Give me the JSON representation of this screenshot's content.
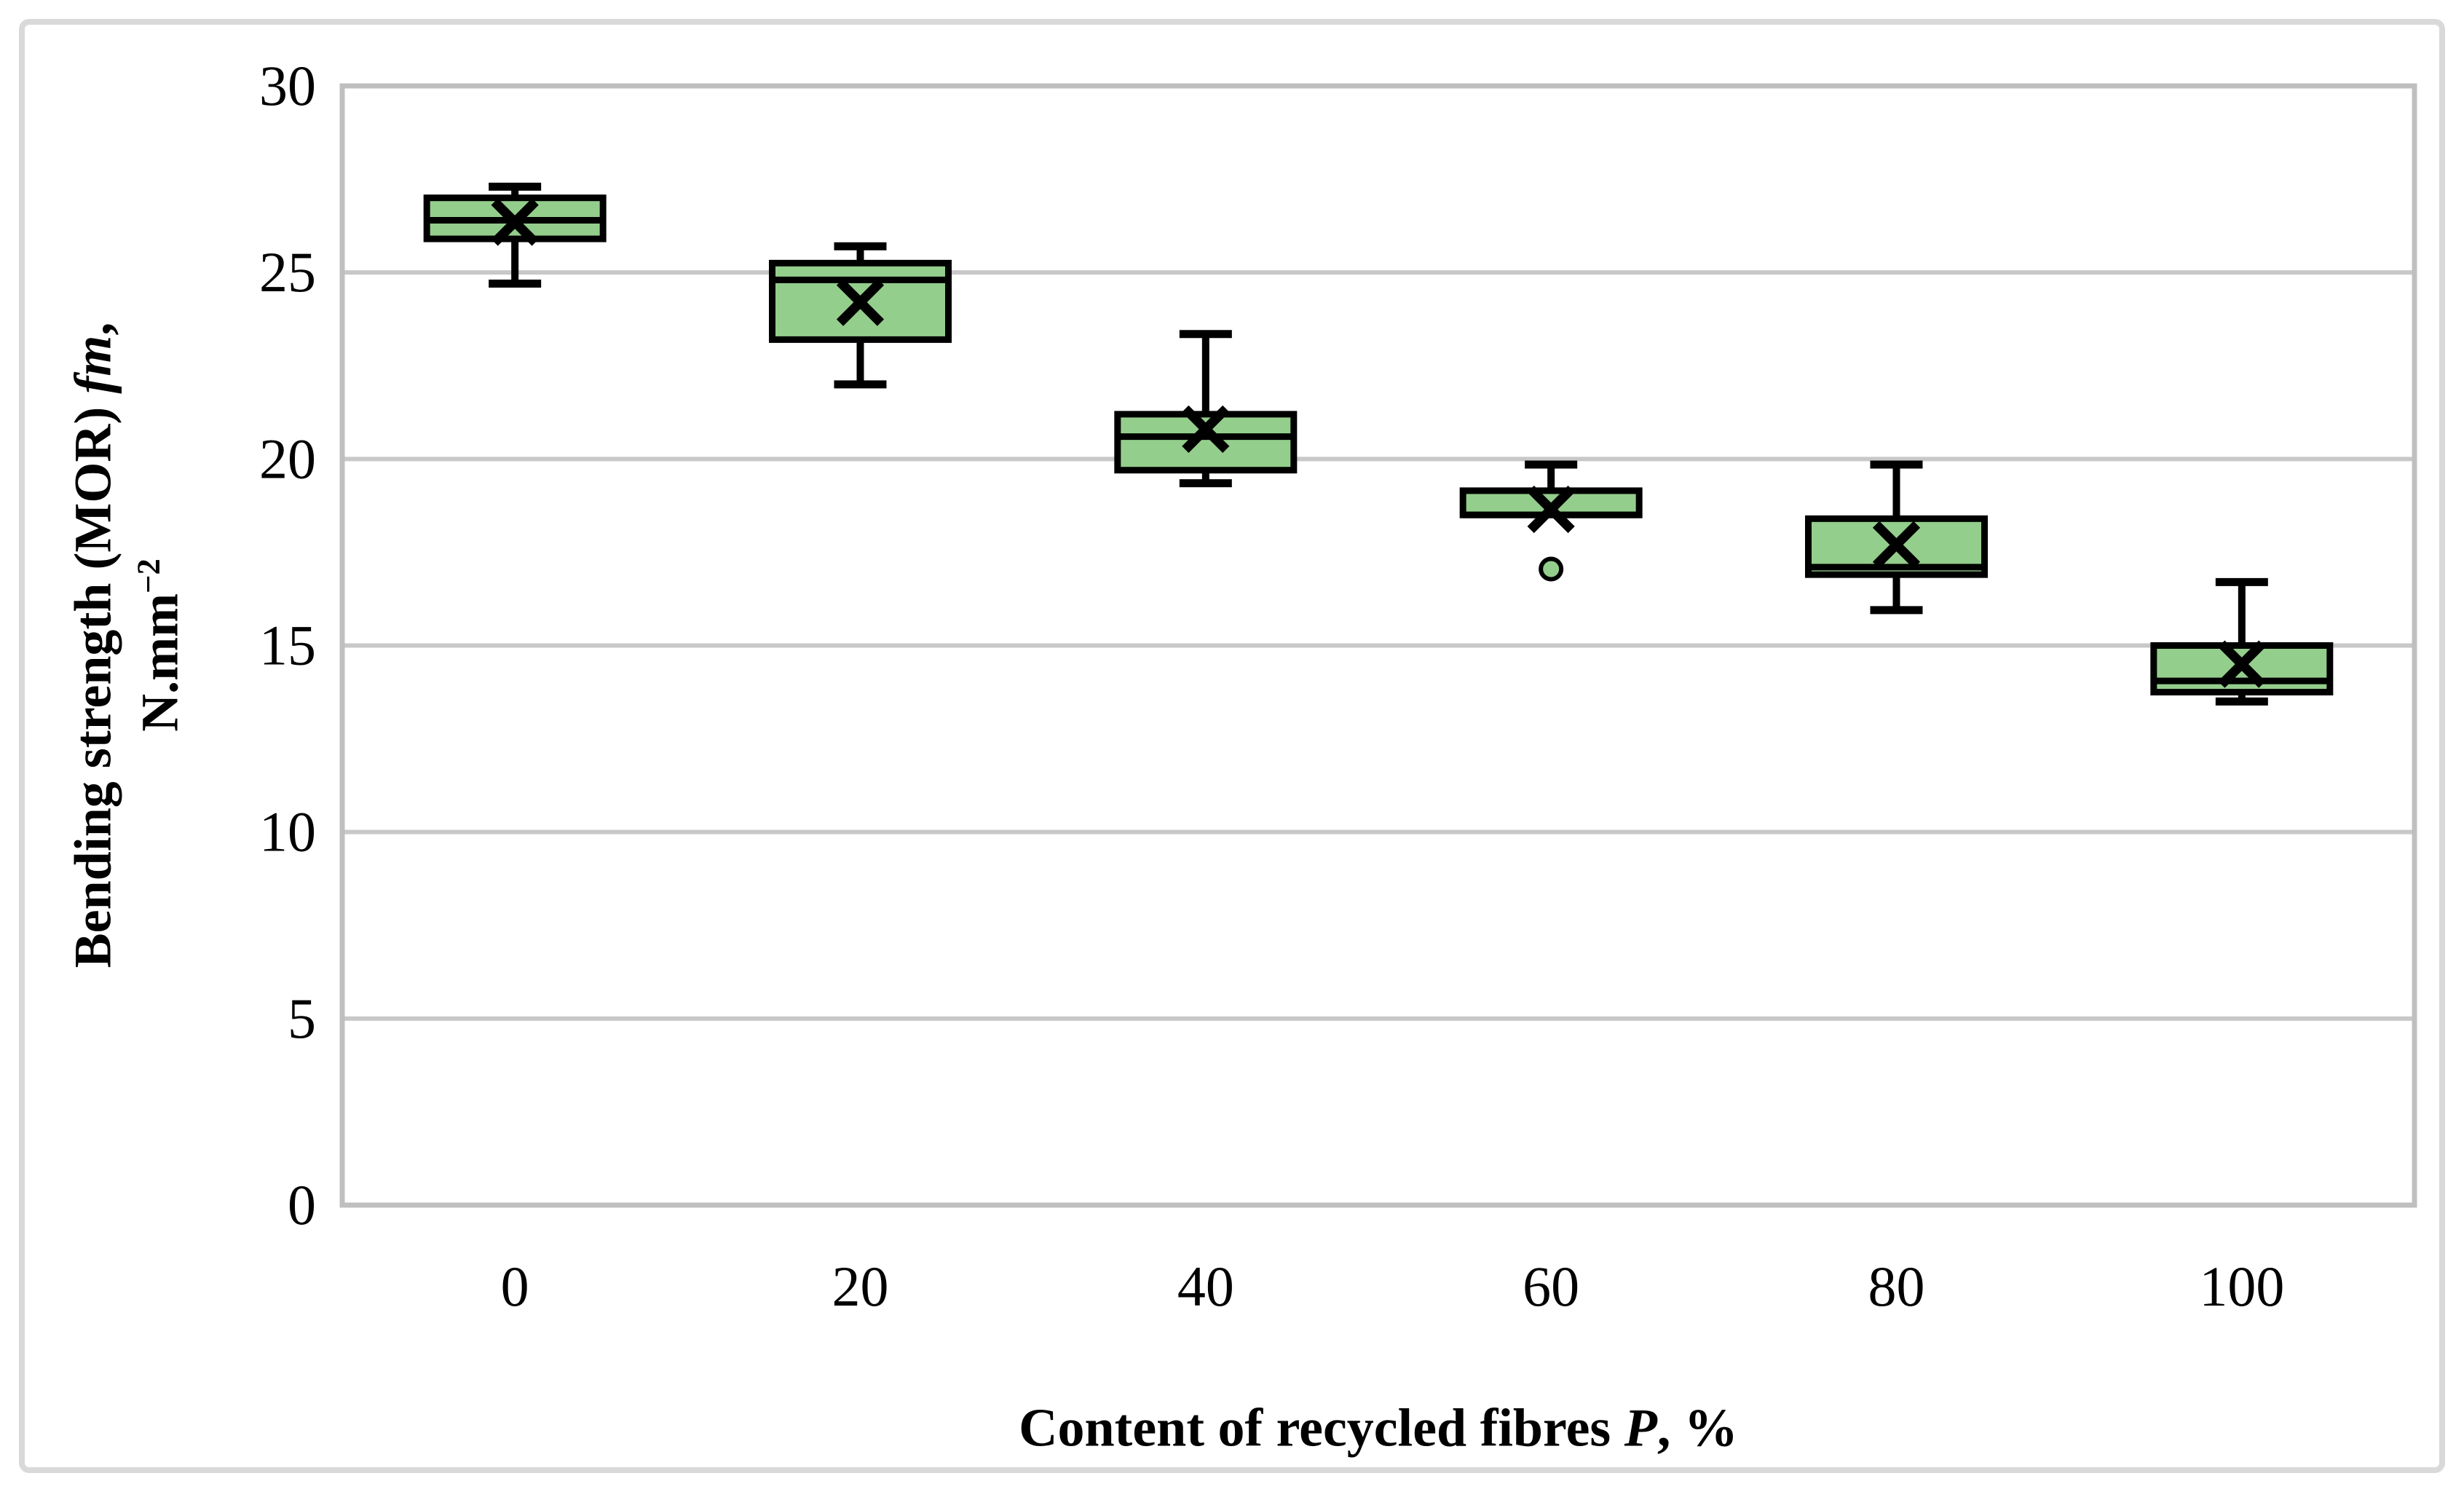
{
  "figure": {
    "background": "#ffffff",
    "border_color": "#d9d9d9",
    "gridline_color": "#c8c8c8",
    "plot_border_color": "#bfbfbf"
  },
  "chart_data": {
    "type": "box",
    "xlabel_parts": {
      "prefix": "Content of recycled fibres ",
      "italic": "P",
      "suffix": ", %"
    },
    "ylabel_parts": {
      "line1_prefix": "Bending strength (MOR) ",
      "line1_italic": "fm",
      "line1_suffix": ",",
      "line2_base": "N.mm",
      "line2_exponent": "−2"
    },
    "x_categories": [
      "0",
      "20",
      "40",
      "60",
      "80",
      "100"
    ],
    "y_ticks": [
      0,
      5,
      10,
      15,
      20,
      25,
      30
    ],
    "ylim": [
      0,
      30
    ],
    "grid": "horizontal",
    "legend": "none",
    "box_fill": "#94ce8c",
    "box_stroke": "#000000",
    "mean_marker": "x",
    "series": [
      {
        "category": "0",
        "low": 24.7,
        "q1": 25.9,
        "median": 26.4,
        "q3": 27.0,
        "high": 27.3,
        "mean": 26.35,
        "outliers": []
      },
      {
        "category": "20",
        "low": 22.0,
        "q1": 23.2,
        "median": 24.8,
        "q3": 25.25,
        "high": 25.7,
        "mean": 24.2,
        "outliers": []
      },
      {
        "category": "40",
        "low": 19.35,
        "q1": 19.7,
        "median": 20.6,
        "q3": 21.2,
        "high": 23.35,
        "mean": 20.8,
        "outliers": []
      },
      {
        "category": "60",
        "low": 18.5,
        "q1": 18.5,
        "median": 18.5,
        "q3": 19.15,
        "high": 19.85,
        "mean": 18.65,
        "outliers": [
          17.05
        ]
      },
      {
        "category": "80",
        "low": 15.95,
        "q1": 16.9,
        "median": 17.1,
        "q3": 18.4,
        "high": 19.85,
        "mean": 17.7,
        "outliers": []
      },
      {
        "category": "100",
        "low": 13.5,
        "q1": 13.75,
        "median": 14.05,
        "q3": 15.0,
        "high": 16.7,
        "mean": 14.5,
        "outliers": []
      }
    ]
  }
}
